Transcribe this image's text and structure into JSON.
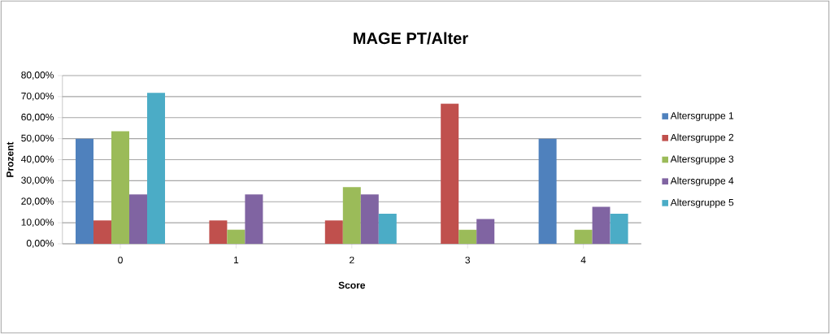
{
  "chart_data": {
    "type": "bar",
    "title": "MAGE PT/Alter",
    "xlabel": "Score",
    "ylabel": "Prozent",
    "categories": [
      "0",
      "1",
      "2",
      "3",
      "4"
    ],
    "series": [
      {
        "name": "Altersgruppe 1",
        "color": "#4f81bd",
        "values": [
          50,
          0,
          0,
          0,
          50
        ]
      },
      {
        "name": "Altersgruppe 2",
        "color": "#c0504d",
        "values": [
          11.1,
          11.1,
          11.1,
          66.7,
          0
        ]
      },
      {
        "name": "Altersgruppe 3",
        "color": "#9bbb59",
        "values": [
          53.5,
          6.7,
          27,
          6.7,
          6.7
        ]
      },
      {
        "name": "Altersgruppe 4",
        "color": "#8064a2",
        "values": [
          23.5,
          23.5,
          23.5,
          11.8,
          17.6
        ]
      },
      {
        "name": "Altersgruppe 5",
        "color": "#4bacc6",
        "values": [
          71.8,
          0,
          14.3,
          0,
          14.3
        ]
      }
    ],
    "ylim": [
      0,
      80
    ],
    "yticks": [
      {
        "value": 0,
        "label": "0,00%"
      },
      {
        "value": 10,
        "label": "10,00%"
      },
      {
        "value": 20,
        "label": "20,00%"
      },
      {
        "value": 30,
        "label": "30,00%"
      },
      {
        "value": 40,
        "label": "40,00%"
      },
      {
        "value": 50,
        "label": "50,00%"
      },
      {
        "value": 60,
        "label": "60,00%"
      },
      {
        "value": 70,
        "label": "70,00%"
      },
      {
        "value": 80,
        "label": "80,00%"
      }
    ],
    "grid": "y",
    "legend": "right"
  }
}
